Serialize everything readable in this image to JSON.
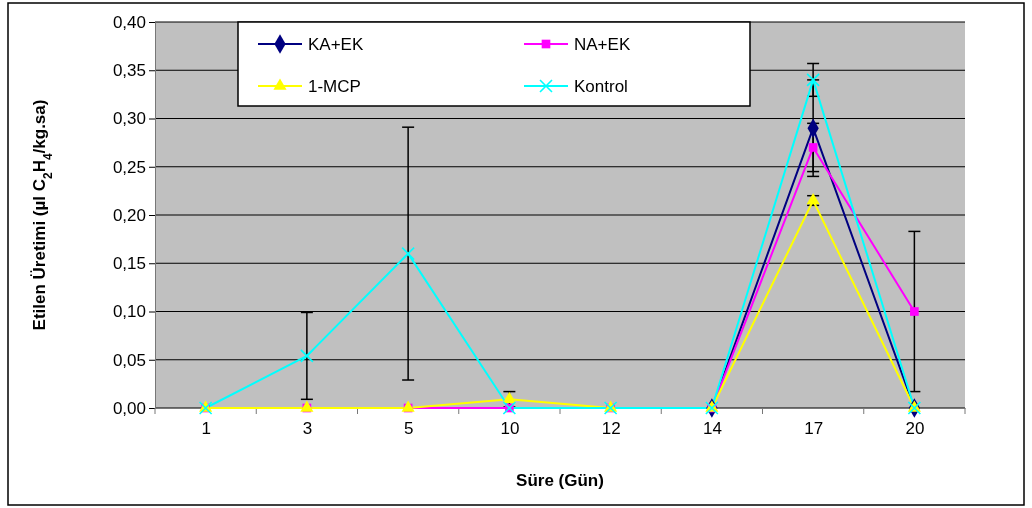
{
  "chart_data": {
    "type": "line",
    "xlabel": "Süre (Gün)",
    "ylabel": "Etilen Üretimi (µl C$_{2}$H$_{4}$/kg.sa)",
    "categories": [
      "1",
      "3",
      "5",
      "10",
      "12",
      "14",
      "17",
      "20"
    ],
    "series": [
      {
        "name": "KA+EK",
        "color": "#000080",
        "marker": "diamond",
        "values": [
          null,
          null,
          null,
          null,
          null,
          0,
          0.29,
          0
        ],
        "errors": [
          null,
          null,
          null,
          null,
          null,
          null,
          0.05,
          null
        ]
      },
      {
        "name": "NA+EK",
        "color": "#ff00ff",
        "marker": "square",
        "values": [
          0,
          0,
          0,
          0,
          0,
          0,
          0.27,
          0.1
        ],
        "errors": [
          null,
          null,
          null,
          null,
          null,
          null,
          0.025,
          0.083
        ]
      },
      {
        "name": "1-MCP",
        "color": "#ffff00",
        "marker": "triangle",
        "values": [
          0,
          0,
          0,
          0.009,
          0,
          0,
          0.215,
          0
        ],
        "errors": [
          null,
          null,
          null,
          0.008,
          null,
          null,
          0.005,
          null
        ]
      },
      {
        "name": "Kontrol",
        "color": "#00ffff",
        "marker": "cross",
        "values": [
          0,
          0.054,
          0.16,
          0,
          0,
          0,
          0.34,
          0
        ],
        "errors": [
          null,
          0.045,
          0.131,
          null,
          null,
          null,
          0.017,
          null
        ]
      }
    ],
    "ylim": [
      0,
      0.4
    ],
    "yticks": [
      {
        "value": 0,
        "label": "0,00"
      },
      {
        "value": 0.05,
        "label": "0,05"
      },
      {
        "value": 0.1,
        "label": "0,10"
      },
      {
        "value": 0.15,
        "label": "0,15"
      },
      {
        "value": 0.2,
        "label": "0,20"
      },
      {
        "value": 0.25,
        "label": "0,25"
      },
      {
        "value": 0.3,
        "label": "0,30"
      },
      {
        "value": 0.35,
        "label": "0,35"
      },
      {
        "value": 0.4,
        "label": "0,40"
      }
    ],
    "grid": "y",
    "legend": "top",
    "line_style": "solid"
  }
}
